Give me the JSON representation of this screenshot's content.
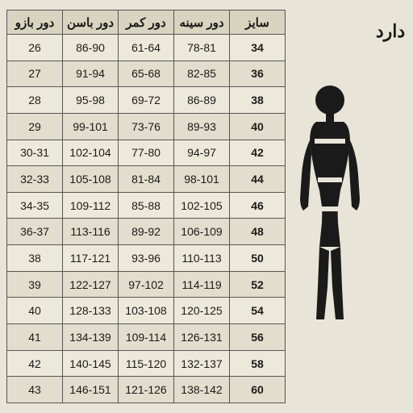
{
  "side_label": "دارد",
  "table": {
    "columns": [
      "سایز",
      "دور سینه",
      "دور کمر",
      "دور باسن",
      "دور بازو"
    ],
    "rows": [
      [
        "34",
        "78-81",
        "61-64",
        "86-90",
        "26"
      ],
      [
        "36",
        "82-85",
        "65-68",
        "91-94",
        "27"
      ],
      [
        "38",
        "86-89",
        "69-72",
        "95-98",
        "28"
      ],
      [
        "40",
        "89-93",
        "73-76",
        "99-101",
        "29"
      ],
      [
        "42",
        "94-97",
        "77-80",
        "102-104",
        "30-31"
      ],
      [
        "44",
        "98-101",
        "81-84",
        "105-108",
        "32-33"
      ],
      [
        "46",
        "102-105",
        "85-88",
        "109-112",
        "34-35"
      ],
      [
        "48",
        "106-109",
        "89-92",
        "113-116",
        "36-37"
      ],
      [
        "50",
        "110-113",
        "93-96",
        "117-121",
        "38"
      ],
      [
        "52",
        "114-119",
        "97-102",
        "122-127",
        "39"
      ],
      [
        "54",
        "120-125",
        "103-108",
        "128-133",
        "40"
      ],
      [
        "56",
        "126-131",
        "109-114",
        "134-139",
        "41"
      ],
      [
        "58",
        "132-137",
        "115-120",
        "140-145",
        "42"
      ],
      [
        "60",
        "138-142",
        "121-126",
        "146-151",
        "43"
      ]
    ],
    "header_bg": "#d8d4c0",
    "row_even_bg": "#e2ddcc",
    "row_odd_bg": "#ede9da",
    "border_color": "#555555",
    "text_color": "#1a1a1a",
    "header_fontsize": 15,
    "cell_fontsize": 14
  },
  "figure": {
    "fill": "#1a1a1a"
  },
  "background_color": "#e8e4d8"
}
